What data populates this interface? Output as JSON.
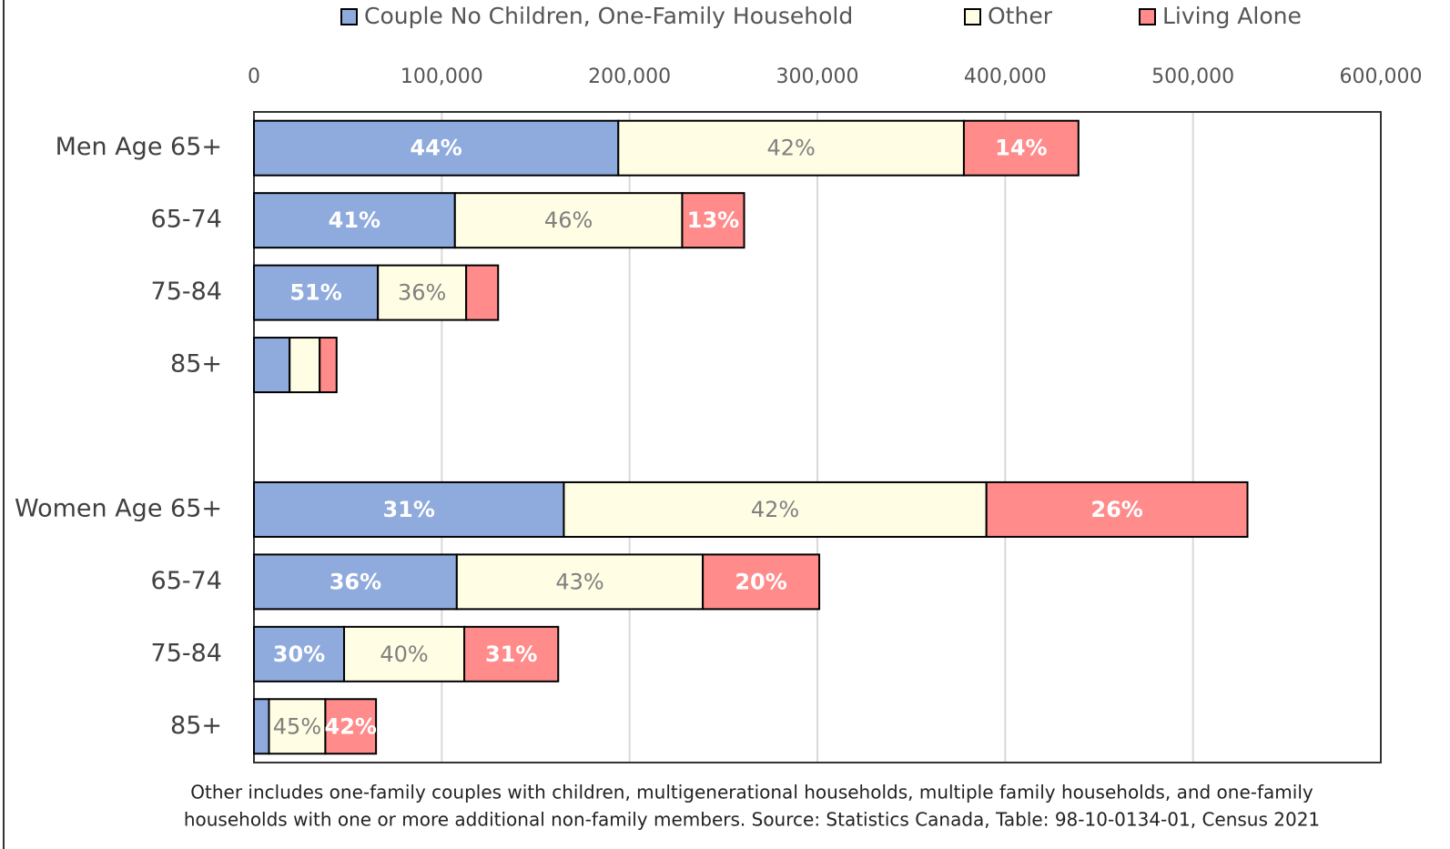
{
  "chart_data": {
    "type": "stacked-barh",
    "categories": [
      "Men Age 65+",
      "65-74",
      "75-84",
      "85+",
      null,
      "Women Age 65+",
      "65-74",
      "75-84",
      "85+"
    ],
    "series": [
      {
        "name": "Couple No Children, One-Family Household",
        "color": "#8faadc",
        "label_color": "#ffffff",
        "values": [
          194000,
          107000,
          66000,
          19000,
          null,
          165000,
          108000,
          48000,
          8000
        ],
        "percent_labels": [
          "44%",
          "41%",
          "51%",
          null,
          null,
          "31%",
          "36%",
          "30%",
          null
        ]
      },
      {
        "name": "Other",
        "color": "#fffde3",
        "label_color": "#808080",
        "values": [
          184000,
          121000,
          47000,
          16000,
          null,
          225000,
          131000,
          64000,
          30000
        ],
        "percent_labels": [
          "42%",
          "46%",
          "36%",
          null,
          null,
          "42%",
          "43%",
          "40%",
          "45%"
        ]
      },
      {
        "name": "Living Alone",
        "color": "#ff8b8b",
        "label_color": "#ffffff",
        "values": [
          61000,
          33000,
          17000,
          9000,
          null,
          139000,
          62000,
          50000,
          27000
        ],
        "percent_labels": [
          "14%",
          "13%",
          null,
          null,
          null,
          "26%",
          "20%",
          "31%",
          "42%"
        ]
      }
    ],
    "xlim": [
      0,
      600000
    ],
    "xticks": [
      0,
      {
        "value": 100000,
        "label": "100,000"
      },
      {
        "value": 200000,
        "label": "200,000"
      },
      {
        "value": 300000,
        "label": "300,000"
      },
      {
        "value": 400000,
        "label": "400,000"
      },
      {
        "value": 500000,
        "label": "500,000"
      },
      {
        "value": 600000,
        "label": "600,000"
      }
    ],
    "grid": true,
    "legend": "top",
    "note": [
      "Other includes one-family couples with children, multigenerational households, multiple family households, and one-family",
      "households with one or more additional non-family members. Source: Statistics Canada, Table: 98-10-0134-01, Census 2021"
    ]
  }
}
